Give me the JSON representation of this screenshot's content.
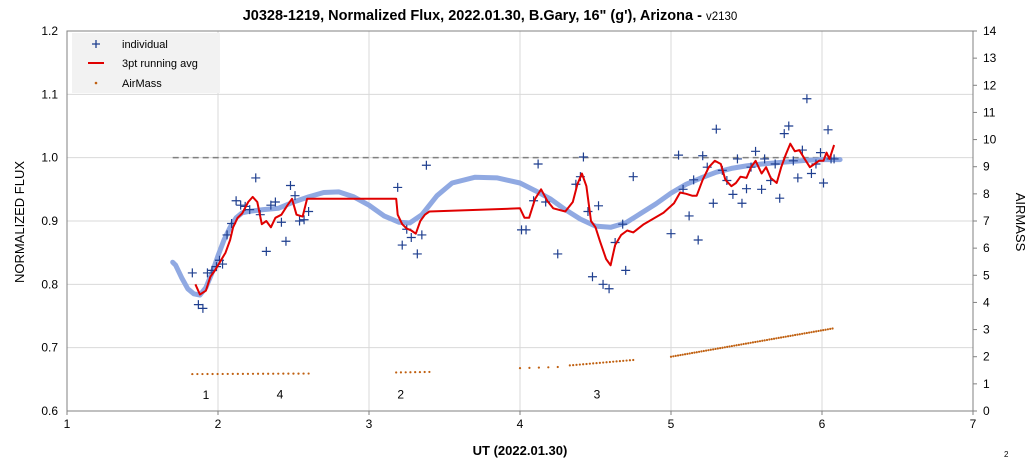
{
  "chart_data": {
    "type": "scatter",
    "title": "J0328-1219, Normalized Flux, 2022.01.30, B.Gary, 16\" (g'), Arizona - ",
    "title_version": "v2130",
    "xlabel": "UT (2022.01.30)",
    "ylabel": "NORMALIZED FLUX",
    "y2label": "AIRMASS",
    "xlim": [
      1,
      7
    ],
    "ylim": [
      0.6,
      1.2
    ],
    "y2lim": [
      0,
      14
    ],
    "x_ticks": [
      "1",
      "2",
      "3",
      "4",
      "5",
      "6",
      "7"
    ],
    "y_ticks": [
      "0.6",
      "0.7",
      "0.8",
      "0.9",
      "1.0",
      "1.1",
      "1.2"
    ],
    "y2_ticks": [
      "0",
      "1",
      "2",
      "3",
      "4",
      "5",
      "6",
      "7",
      "8",
      "9",
      "10",
      "11",
      "12",
      "13",
      "14"
    ],
    "grid": true,
    "legend_position": "top-left",
    "reference_line": {
      "y": 1.0,
      "x_range": [
        1.7,
        6.1
      ],
      "style": "dashed"
    },
    "colors": {
      "individual": "#1f3f8f",
      "running_avg": "#e00000",
      "airmass": "#c06010",
      "model": "#8aa4e0",
      "reference": "#808080"
    },
    "series": [
      {
        "name": "individual",
        "marker": "plus",
        "points": [
          [
            1.83,
            0.818
          ],
          [
            1.87,
            0.768
          ],
          [
            1.9,
            0.762
          ],
          [
            1.93,
            0.818
          ],
          [
            1.96,
            0.822
          ],
          [
            1.99,
            0.828
          ],
          [
            2.01,
            0.838
          ],
          [
            2.03,
            0.832
          ],
          [
            2.06,
            0.878
          ],
          [
            2.09,
            0.896
          ],
          [
            2.12,
            0.932
          ],
          [
            2.15,
            0.925
          ],
          [
            2.18,
            0.923
          ],
          [
            2.21,
            0.918
          ],
          [
            2.25,
            0.968
          ],
          [
            2.28,
            0.91
          ],
          [
            2.32,
            0.852
          ],
          [
            2.35,
            0.925
          ],
          [
            2.38,
            0.93
          ],
          [
            2.42,
            0.898
          ],
          [
            2.45,
            0.868
          ],
          [
            2.48,
            0.956
          ],
          [
            2.51,
            0.94
          ],
          [
            2.54,
            0.9
          ],
          [
            2.57,
            0.902
          ],
          [
            2.6,
            0.915
          ],
          [
            3.19,
            0.953
          ],
          [
            3.22,
            0.862
          ],
          [
            3.25,
            0.887
          ],
          [
            3.28,
            0.874
          ],
          [
            3.32,
            0.848
          ],
          [
            3.35,
            0.878
          ],
          [
            3.38,
            0.988
          ],
          [
            4.01,
            0.886
          ],
          [
            4.04,
            0.886
          ],
          [
            4.09,
            0.932
          ],
          [
            4.12,
            0.99
          ],
          [
            4.17,
            0.93
          ],
          [
            4.25,
            0.848
          ],
          [
            4.37,
            0.958
          ],
          [
            4.4,
            0.97
          ],
          [
            4.42,
            1.001
          ],
          [
            4.45,
            0.915
          ],
          [
            4.48,
            0.812
          ],
          [
            4.52,
            0.924
          ],
          [
            4.55,
            0.8
          ],
          [
            4.59,
            0.793
          ],
          [
            4.63,
            0.866
          ],
          [
            4.68,
            0.895
          ],
          [
            4.7,
            0.822
          ],
          [
            4.75,
            0.97
          ],
          [
            5.0,
            0.88
          ],
          [
            5.05,
            1.004
          ],
          [
            5.08,
            0.95
          ],
          [
            5.12,
            0.908
          ],
          [
            5.15,
            0.965
          ],
          [
            5.18,
            0.87
          ],
          [
            5.21,
            1.003
          ],
          [
            5.24,
            0.985
          ],
          [
            5.28,
            0.928
          ],
          [
            5.3,
            1.045
          ],
          [
            5.34,
            0.98
          ],
          [
            5.37,
            0.964
          ],
          [
            5.41,
            0.942
          ],
          [
            5.44,
            0.998
          ],
          [
            5.47,
            0.928
          ],
          [
            5.5,
            0.951
          ],
          [
            5.53,
            0.985
          ],
          [
            5.56,
            1.01
          ],
          [
            5.6,
            0.95
          ],
          [
            5.62,
            0.998
          ],
          [
            5.66,
            0.964
          ],
          [
            5.69,
            0.99
          ],
          [
            5.72,
            0.936
          ],
          [
            5.75,
            1.038
          ],
          [
            5.78,
            1.05
          ],
          [
            5.81,
            0.995
          ],
          [
            5.84,
            0.968
          ],
          [
            5.87,
            1.012
          ],
          [
            5.9,
            1.093
          ],
          [
            5.93,
            0.975
          ],
          [
            5.96,
            0.99
          ],
          [
            5.99,
            1.008
          ],
          [
            6.01,
            0.96
          ],
          [
            6.04,
            1.044
          ],
          [
            6.06,
            0.998
          ],
          [
            6.08,
            0.998
          ]
        ]
      },
      {
        "name": "3pt running avg",
        "marker": "line",
        "points": [
          [
            1.85,
            0.8
          ],
          [
            1.88,
            0.784
          ],
          [
            1.92,
            0.79
          ],
          [
            1.95,
            0.812
          ],
          [
            1.98,
            0.822
          ],
          [
            2.02,
            0.838
          ],
          [
            2.05,
            0.85
          ],
          [
            2.08,
            0.87
          ],
          [
            2.1,
            0.89
          ],
          [
            2.13,
            0.905
          ],
          [
            2.16,
            0.912
          ],
          [
            2.2,
            0.93
          ],
          [
            2.23,
            0.938
          ],
          [
            2.26,
            0.93
          ],
          [
            2.29,
            0.895
          ],
          [
            2.32,
            0.9
          ],
          [
            2.35,
            0.89
          ],
          [
            2.38,
            0.905
          ],
          [
            2.42,
            0.91
          ],
          [
            2.46,
            0.925
          ],
          [
            2.49,
            0.935
          ],
          [
            2.52,
            0.91
          ],
          [
            2.56,
            0.907
          ],
          [
            2.59,
            0.935
          ],
          [
            3.18,
            0.935
          ],
          [
            3.19,
            0.91
          ],
          [
            3.22,
            0.895
          ],
          [
            3.25,
            0.888
          ],
          [
            3.28,
            0.885
          ],
          [
            3.31,
            0.88
          ],
          [
            3.34,
            0.9
          ],
          [
            3.37,
            0.91
          ],
          [
            3.4,
            0.915
          ],
          [
            4.0,
            0.92
          ],
          [
            4.03,
            0.905
          ],
          [
            4.06,
            0.905
          ],
          [
            4.1,
            0.935
          ],
          [
            4.14,
            0.95
          ],
          [
            4.18,
            0.932
          ],
          [
            4.22,
            0.92
          ],
          [
            4.3,
            0.915
          ],
          [
            4.35,
            0.93
          ],
          [
            4.38,
            0.958
          ],
          [
            4.41,
            0.975
          ],
          [
            4.44,
            0.955
          ],
          [
            4.47,
            0.9
          ],
          [
            4.5,
            0.89
          ],
          [
            4.53,
            0.868
          ],
          [
            4.57,
            0.84
          ],
          [
            4.6,
            0.83
          ],
          [
            4.63,
            0.862
          ],
          [
            4.67,
            0.878
          ],
          [
            4.71,
            0.885
          ],
          [
            4.75,
            0.882
          ],
          [
            4.82,
            0.895
          ],
          [
            4.95,
            0.913
          ],
          [
            5.02,
            0.928
          ],
          [
            5.06,
            0.945
          ],
          [
            5.1,
            0.943
          ],
          [
            5.14,
            0.94
          ],
          [
            5.17,
            0.94
          ],
          [
            5.21,
            0.965
          ],
          [
            5.25,
            0.985
          ],
          [
            5.29,
            0.995
          ],
          [
            5.33,
            0.99
          ],
          [
            5.36,
            0.965
          ],
          [
            5.4,
            0.955
          ],
          [
            5.43,
            0.96
          ],
          [
            5.46,
            0.97
          ],
          [
            5.5,
            0.968
          ],
          [
            5.53,
            0.985
          ],
          [
            5.56,
            0.995
          ],
          [
            5.6,
            0.975
          ],
          [
            5.63,
            0.985
          ],
          [
            5.66,
            0.968
          ],
          [
            5.7,
            0.96
          ],
          [
            5.73,
            0.985
          ],
          [
            5.76,
            1.005
          ],
          [
            5.79,
            1.022
          ],
          [
            5.82,
            1.01
          ],
          [
            5.85,
            1.012
          ],
          [
            5.88,
            1.0
          ],
          [
            5.92,
            0.985
          ],
          [
            5.95,
            0.99
          ],
          [
            5.98,
            0.995
          ],
          [
            6.01,
            0.995
          ],
          [
            6.03,
            1.008
          ],
          [
            6.05,
            0.998
          ],
          [
            6.08,
            1.02
          ]
        ]
      },
      {
        "name": "AirMass",
        "marker": "dot",
        "segments": [
          {
            "x_start": 1.83,
            "x_end": 2.6,
            "y_start": 1.36,
            "y_end": 1.38,
            "n": 24
          },
          {
            "x_start": 3.18,
            "x_end": 3.4,
            "y_start": 1.42,
            "y_end": 1.44,
            "n": 8
          },
          {
            "x_start": 4.0,
            "x_end": 4.25,
            "y_start": 1.58,
            "y_end": 1.62,
            "n": 5
          },
          {
            "x_start": 4.33,
            "x_end": 4.75,
            "y_start": 1.68,
            "y_end": 1.88,
            "n": 20
          },
          {
            "x_start": 5.0,
            "x_end": 6.07,
            "y_start": 2.0,
            "y_end": 3.04,
            "n": 70
          }
        ]
      },
      {
        "marker": "thick-curve",
        "points": [
          [
            1.7,
            0.835
          ],
          [
            1.72,
            0.83
          ],
          [
            1.76,
            0.81
          ],
          [
            1.8,
            0.793
          ],
          [
            1.84,
            0.785
          ],
          [
            1.88,
            0.783
          ],
          [
            1.92,
            0.795
          ],
          [
            1.96,
            0.818
          ],
          [
            2.0,
            0.845
          ],
          [
            2.04,
            0.87
          ],
          [
            2.08,
            0.89
          ],
          [
            2.12,
            0.905
          ],
          [
            2.16,
            0.913
          ],
          [
            2.2,
            0.915
          ],
          [
            2.3,
            0.918
          ],
          [
            2.4,
            0.92
          ],
          [
            2.5,
            0.93
          ],
          [
            2.6,
            0.938
          ],
          [
            2.7,
            0.945
          ],
          [
            2.8,
            0.946
          ],
          [
            2.9,
            0.938
          ],
          [
            3.0,
            0.925
          ],
          [
            3.1,
            0.908
          ],
          [
            3.2,
            0.898
          ],
          [
            3.27,
            0.897
          ],
          [
            3.35,
            0.91
          ],
          [
            3.45,
            0.94
          ],
          [
            3.55,
            0.96
          ],
          [
            3.7,
            0.969
          ],
          [
            3.85,
            0.968
          ],
          [
            4.0,
            0.96
          ],
          [
            4.1,
            0.948
          ],
          [
            4.2,
            0.935
          ],
          [
            4.3,
            0.918
          ],
          [
            4.4,
            0.903
          ],
          [
            4.5,
            0.892
          ],
          [
            4.6,
            0.89
          ],
          [
            4.7,
            0.897
          ],
          [
            4.8,
            0.912
          ],
          [
            4.9,
            0.927
          ],
          [
            5.0,
            0.944
          ],
          [
            5.1,
            0.958
          ],
          [
            5.2,
            0.968
          ],
          [
            5.3,
            0.977
          ],
          [
            5.4,
            0.983
          ],
          [
            5.5,
            0.987
          ],
          [
            5.6,
            0.99
          ],
          [
            5.7,
            0.992
          ],
          [
            5.8,
            0.994
          ],
          [
            5.9,
            0.996
          ],
          [
            6.0,
            0.997
          ],
          [
            6.12,
            0.997
          ]
        ]
      }
    ],
    "annotations": [
      {
        "text": "1",
        "x": 1.92,
        "y": 0.625
      },
      {
        "text": "4",
        "x": 2.41,
        "y": 0.626
      },
      {
        "text": "2",
        "x": 3.21,
        "y": 0.626
      },
      {
        "text": "3",
        "x": 4.51,
        "y": 0.626
      }
    ],
    "corner_note": "2"
  }
}
